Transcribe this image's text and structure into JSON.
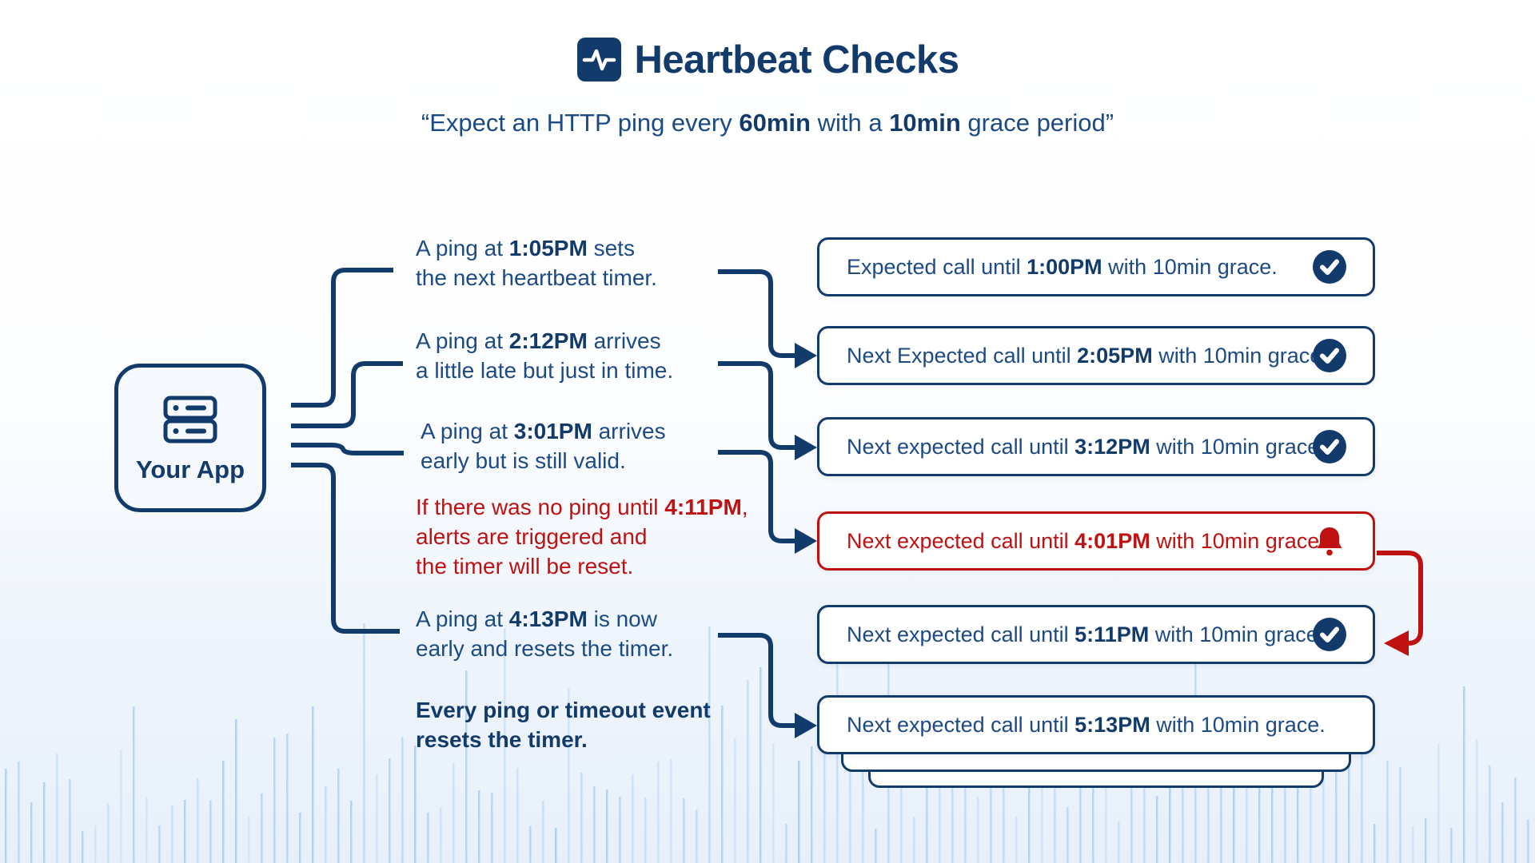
{
  "header": {
    "title": "Heartbeat Checks",
    "subtitle": {
      "p1": "“Expect an HTTP ping every ",
      "b1": "60min",
      "p2": " with a ",
      "b2": "10min",
      "p3": " grace period”"
    }
  },
  "app_node": {
    "label": "Your App"
  },
  "annotations": [
    {
      "pre": "A ping at ",
      "time": "1:05PM",
      "post": " sets\nthe next heartbeat timer."
    },
    {
      "pre": "A ping at ",
      "time": "2:12PM",
      "post": " arrives\na little late but just in time."
    },
    {
      "pre": "A ping at ",
      "time": "3:01PM",
      "post": " arrives\nearly but is still valid."
    },
    {
      "pre": "If there was no ping until ",
      "time": "4:11PM",
      "post": ",\nalerts are triggered and\nthe timer will be reset."
    },
    {
      "pre": "A ping at ",
      "time": "4:13PM",
      "post": " is now\nearly and resets the timer."
    }
  ],
  "summary_note": "Every ping or timeout event\nresets the timer.",
  "events": [
    {
      "pre": "Expected call until ",
      "time": "1:00PM",
      "post": " with 10min grace.",
      "icon": "check",
      "variant": "ok"
    },
    {
      "pre": "Next Expected call until ",
      "time": "2:05PM",
      "post": " with 10min grace.",
      "icon": "check",
      "variant": "ok"
    },
    {
      "pre": "Next expected call until ",
      "time": "3:12PM",
      "post": " with 10min grace.",
      "icon": "check",
      "variant": "ok"
    },
    {
      "pre": "Next expected call until ",
      "time": "4:01PM",
      "post": " with 10min grace.",
      "icon": "bell",
      "variant": "alert"
    },
    {
      "pre": "Next expected call until ",
      "time": "5:11PM",
      "post": " with 10min grace.",
      "icon": "check",
      "variant": "ok"
    },
    {
      "pre": "Next expected call until ",
      "time": "5:13PM",
      "post": " with 10min grace.",
      "icon": "none",
      "variant": "ok"
    }
  ],
  "colors": {
    "navy": "#123A6B",
    "navy_text": "#1C4A85",
    "red": "#C01111",
    "bg_bottom": "#E7F0FA",
    "node_bg": "#F5F8FC",
    "wave": "#9FC4E8"
  }
}
